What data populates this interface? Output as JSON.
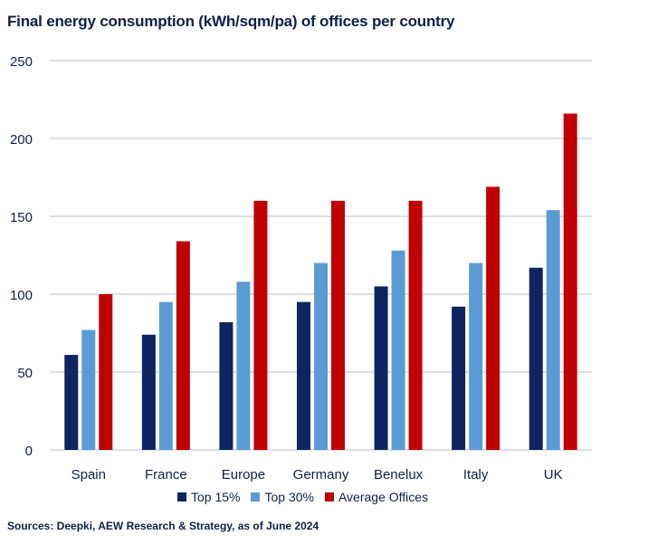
{
  "title": "Final energy consumption (kWh/sqm/pa) of offices per country",
  "source": "Sources: Deepki, AEW Research & Strategy, as of June 2024",
  "colors": {
    "top15": "#0f2461",
    "top30": "#5b9bd5",
    "average": "#c00000",
    "grid": "#d0d4e6",
    "text": "#0f1f4b"
  },
  "chart_data": {
    "type": "bar",
    "title": "Final energy consumption (kWh/sqm/pa) of offices per country",
    "xlabel": "",
    "ylabel": "",
    "ylim": [
      0,
      250
    ],
    "yticks": [
      "0",
      "50",
      "100",
      "150",
      "200",
      "250"
    ],
    "grid": true,
    "legend_position": "bottom",
    "categories": [
      "Spain",
      "France",
      "Europe",
      "Germany",
      "Benelux",
      "Italy",
      "UK"
    ],
    "series": [
      {
        "name": "Top 15%",
        "color": "#0f2461",
        "values": [
          61,
          74,
          82,
          95,
          105,
          92,
          117
        ]
      },
      {
        "name": "Top 30%",
        "color": "#5b9bd5",
        "values": [
          77,
          95,
          108,
          120,
          128,
          120,
          154
        ]
      },
      {
        "name": "Average Offices",
        "color": "#c00000",
        "values": [
          100,
          134,
          160,
          160,
          160,
          169,
          216
        ]
      }
    ]
  }
}
